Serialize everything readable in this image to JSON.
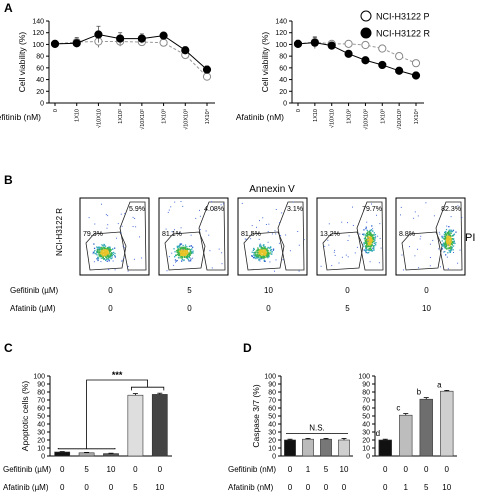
{
  "panels": {
    "A": "A",
    "B": "B",
    "C": "C",
    "D": "D"
  },
  "legend": {
    "parental": "NCI-H3122 P",
    "resistant": "NCI-H3122 R"
  },
  "colors": {
    "resistant": "#000000",
    "parental": "#ffffff",
    "bar_black": "#111111",
    "bar_light": "#d9d9d9",
    "bar_mid": "#7a7a7a",
    "bar_dark": "#4a4a4a",
    "bar_lightest": "#c8c8c8"
  },
  "panelB": {
    "title": "Annexin V",
    "row_label": "NCI-H3122 R",
    "side_label": "PI",
    "gefitinib_label": "Gefitinib (µM)",
    "afatinib_label": "Afatinib (µM)",
    "plots": [
      {
        "left_pct": "79.3%",
        "right_pct": "5.9%",
        "gefitinib": "0",
        "afatinib": "0"
      },
      {
        "left_pct": "81.1%",
        "right_pct": "4.08%",
        "gefitinib": "5",
        "afatinib": "0"
      },
      {
        "left_pct": "81.5%",
        "right_pct": "3.1%",
        "gefitinib": "10",
        "afatinib": "0"
      },
      {
        "left_pct": "13.2%",
        "right_pct": "79.7%",
        "gefitinib": "0",
        "afatinib": "5"
      },
      {
        "left_pct": "8.8%",
        "right_pct": "82.3%",
        "gefitinib": "0",
        "afatinib": "10"
      }
    ]
  },
  "chart_data": [
    {
      "id": "A-left",
      "type": "line",
      "ylabel": "Cell viability (%)",
      "xaxis_label": "Gefitinib (nM)",
      "ylim": [
        0,
        140
      ],
      "yticks": [
        0,
        20,
        40,
        60,
        80,
        100,
        120,
        140
      ],
      "x_tick_labels": [
        "0",
        "1X10",
        "√10X10",
        "1X10²",
        "√10X10²",
        "1X10³",
        "√10X10³",
        "1X10⁴"
      ],
      "series": [
        {
          "name": "NCI-H3122 P",
          "marker": "open",
          "values": [
            101,
            104,
            105,
            105,
            104,
            103,
            82,
            45
          ],
          "errors": [
            5,
            8,
            10,
            8,
            6,
            5,
            5,
            5
          ]
        },
        {
          "name": "NCI-H3122 R",
          "marker": "filled",
          "values": [
            101,
            102,
            117,
            110,
            110,
            115,
            90,
            57
          ],
          "errors": [
            5,
            6,
            14,
            10,
            8,
            5,
            6,
            6
          ]
        }
      ]
    },
    {
      "id": "A-right",
      "type": "line",
      "ylabel": "Cell viability (%)",
      "xaxis_label": "Afatinib (nM)",
      "ylim": [
        0,
        140
      ],
      "yticks": [
        0,
        20,
        40,
        60,
        80,
        100,
        120,
        140
      ],
      "x_tick_labels": [
        "0",
        "1X10",
        "√10X10",
        "1X10²",
        "√10X10²",
        "1X10³",
        "√10X10³",
        "1X10⁴"
      ],
      "series": [
        {
          "name": "NCI-H3122 P",
          "marker": "open",
          "values": [
            101,
            104,
            101,
            101,
            99,
            93,
            80,
            68
          ],
          "errors": [
            6,
            8,
            4,
            3,
            3,
            3,
            3,
            3
          ]
        },
        {
          "name": "NCI-H3122 R",
          "marker": "filled",
          "values": [
            101,
            103,
            98,
            84,
            73,
            65,
            55,
            47
          ],
          "errors": [
            6,
            10,
            4,
            3,
            3,
            3,
            3,
            3
          ]
        }
      ]
    },
    {
      "id": "C",
      "type": "bar",
      "ylabel": "Apoptotic cells (%)",
      "ylim": [
        0,
        100
      ],
      "yticks": [
        0,
        10,
        20,
        30,
        40,
        50,
        60,
        70,
        80,
        90,
        100
      ],
      "row1_label": "Gefitinib (µM)",
      "row2_label": "Afatinib (µM)",
      "gefitinib": [
        "0",
        "5",
        "10",
        "0",
        "0"
      ],
      "afatinib": [
        "0",
        "0",
        "0",
        "5",
        "10"
      ],
      "values": [
        5,
        4,
        3,
        76,
        77
      ],
      "errors": [
        0.5,
        0.5,
        0.5,
        2,
        1.5
      ],
      "bar_colors": [
        "#111111",
        "#aaaaaa",
        "#555555",
        "#dedede",
        "#444444"
      ],
      "significance": "***"
    },
    {
      "id": "D-left",
      "type": "bar",
      "ylabel": "Caspase 3/7 (%)",
      "ylim": [
        0,
        100
      ],
      "yticks": [
        0,
        10,
        20,
        30,
        40,
        50,
        60,
        70,
        80,
        90,
        100
      ],
      "row1_label": "Gefitinib (nM)",
      "row2_label": "Afatinib (nM)",
      "gefitinib": [
        "0",
        "1",
        "5",
        "10"
      ],
      "afatinib": [
        "0",
        "0",
        "0",
        "0"
      ],
      "values": [
        20,
        21,
        21,
        20
      ],
      "errors": [
        1,
        1,
        1,
        2
      ],
      "bar_colors": [
        "#111111",
        "#bbbbbb",
        "#777777",
        "#cfcfcf"
      ],
      "annotation": "N.S."
    },
    {
      "id": "D-right",
      "type": "bar",
      "ylim": [
        0,
        100
      ],
      "yticks": [
        0,
        10,
        20,
        30,
        40,
        50,
        60,
        70,
        80,
        90,
        100
      ],
      "gefitinib": [
        "0",
        "0",
        "0",
        "0"
      ],
      "afatinib": [
        "0",
        "1",
        "5",
        "10"
      ],
      "values": [
        20,
        51,
        71,
        81
      ],
      "errors": [
        1,
        2,
        2,
        1
      ],
      "bar_colors": [
        "#111111",
        "#bdbdbd",
        "#6e6e6e",
        "#cfcfcf"
      ],
      "letters": [
        "d",
        "c",
        "b",
        "a"
      ]
    }
  ]
}
